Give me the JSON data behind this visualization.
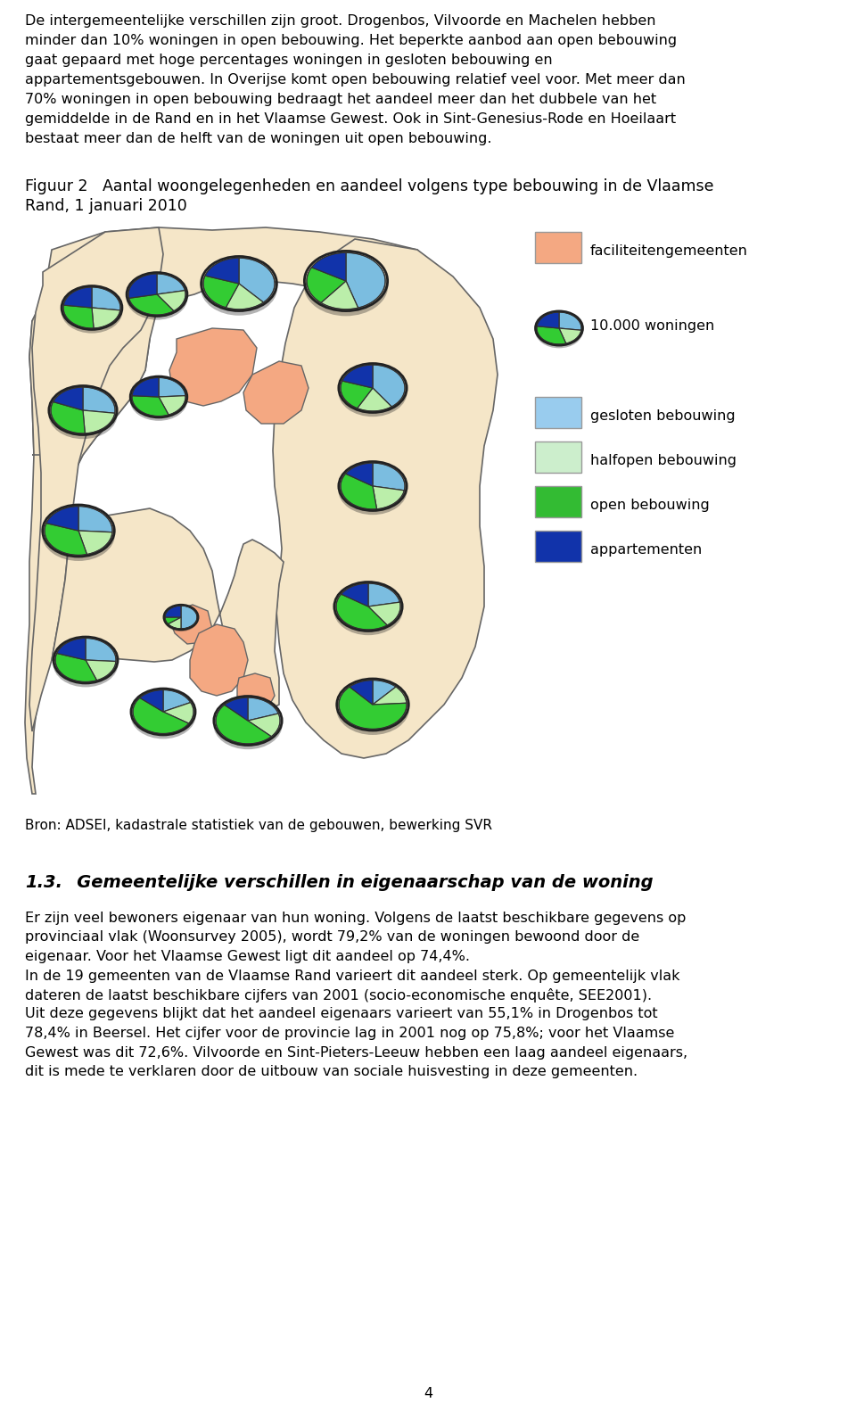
{
  "page_text_top": [
    "De intergemeentelijke verschillen zijn groot. Drogenbos, Vilvoorde en Machelen hebben",
    "minder dan 10% woningen in open bebouwing. Het beperkte aanbod aan open bebouwing",
    "gaat gepaard met hoge percentages woningen in gesloten bebouwing en",
    "appartementsgebouwen. In Overijse komt open bebouwing relatief veel voor. Met meer dan",
    "70% woningen in open bebouwing bedraagt het aandeel meer dan het dubbele van het",
    "gemiddelde in de Rand en in het Vlaamse Gewest. Ook in Sint-Genesius-Rode en Hoeilaart",
    "bestaat meer dan de helft van de woningen uit open bebouwing."
  ],
  "figure_caption_line1": "Figuur 2   Aantal woongelegenheden en aandeel volgens type bebouwing in de Vlaamse",
  "figure_caption_line2": "Rand, 1 januari 2010",
  "source_text": "Bron: ADSEI, kadastrale statistiek van de gebouwen, bewerking SVR",
  "section_header_num": "1.3.",
  "section_header_text": "   Gemeentelijke verschillen in eigenaarschap van de woning",
  "body_text_para1": [
    "Er zijn veel bewoners eigenaar van hun woning. Volgens de laatst beschikbare gegevens op",
    "provinciaal vlak (Woonsurvey 2005), wordt 79,2% van de woningen bewoond door de",
    "eigenaar. Voor het Vlaamse Gewest ligt dit aandeel op 74,4%."
  ],
  "body_text_para2": [
    "In de 19 gemeenten van de Vlaamse Rand varieert dit aandeel sterk. Op gemeentelijk vlak",
    "dateren de laatst beschikbare cijfers van 2001 (socio-economische enquête, SEE2001).",
    "Uit deze gegevens blijkt dat het aandeel eigenaars varieert van 55,1% in Drogenbos tot",
    "78,4% in Beersel. Het cijfer voor de provincie lag in 2001 nog op 75,8%; voor het Vlaamse",
    "Gewest was dit 72,6%. Vilvoorde en Sint-Pieters-Leeuw hebben een laag aandeel eigenaars,",
    "dit is mede te verklaren door de uitbouw van sociale huisvesting in deze gemeenten."
  ],
  "page_number": "4",
  "legend_fac_color": "#F4A882",
  "legend_gesloten_color": "#99CCEE",
  "legend_halfopen_color": "#CCEECC",
  "legend_open_color": "#33BB33",
  "legend_app_color": "#1133AA",
  "map_beige": "#F5E6C8",
  "map_salmon": "#F4A882",
  "map_outline": "#666666",
  "pie_gesloten": "#7BBDE0",
  "pie_halfopen": "#BBEEAA",
  "pie_open": "#33CC33",
  "pie_app": "#1133AA",
  "pie_edge": "#333333",
  "pie_dark_edge": "#1a1a1a"
}
